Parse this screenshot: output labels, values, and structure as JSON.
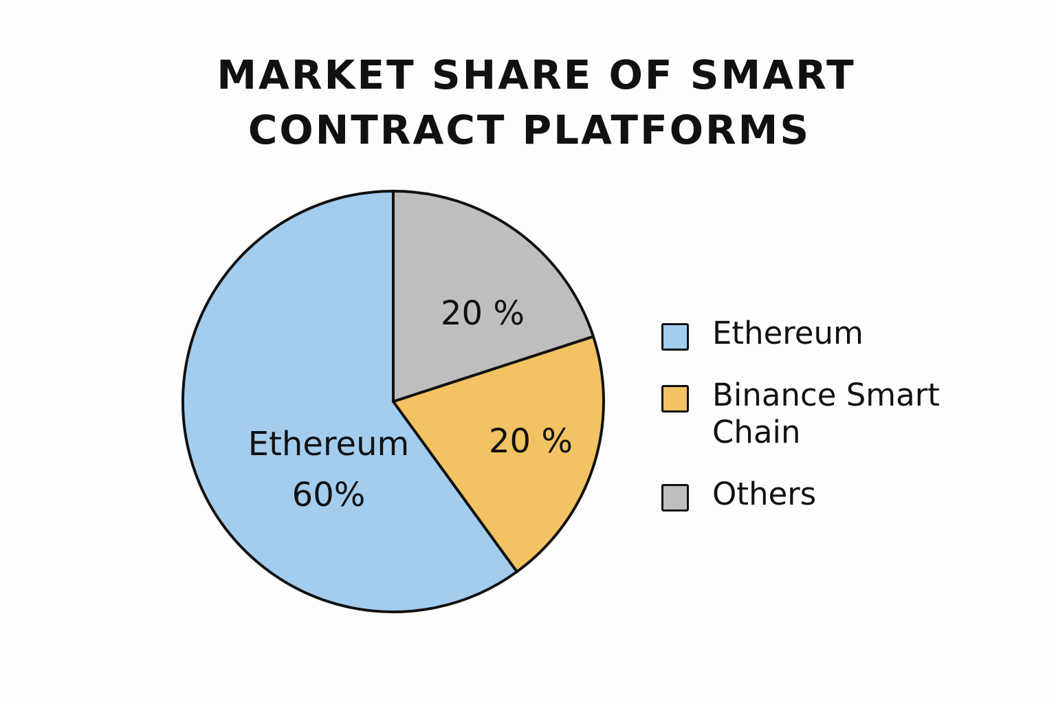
{
  "title_lines": [
    "MARKET SHARE OF SMART",
    "CONTRACT PLATFORMS"
  ],
  "chart_data": {
    "type": "pie",
    "title": "MARKET SHARE OF SMART CONTRACT PLATFORMS",
    "slices": [
      {
        "name": "Ethereum",
        "value": 60,
        "color": "#a3cdef",
        "label_lines": [
          "Ethereum",
          "60%"
        ]
      },
      {
        "name": "Binance Smart Chain",
        "value": 20,
        "color": "#f2c263",
        "label_lines": [
          "20 %"
        ]
      },
      {
        "name": "Others",
        "value": 20,
        "color": "#bebebe",
        "label_lines": [
          "20 %"
        ]
      }
    ],
    "legend": {
      "position": "right",
      "entries": [
        "Ethereum",
        "Binance Smart Chain",
        "Others"
      ]
    }
  }
}
